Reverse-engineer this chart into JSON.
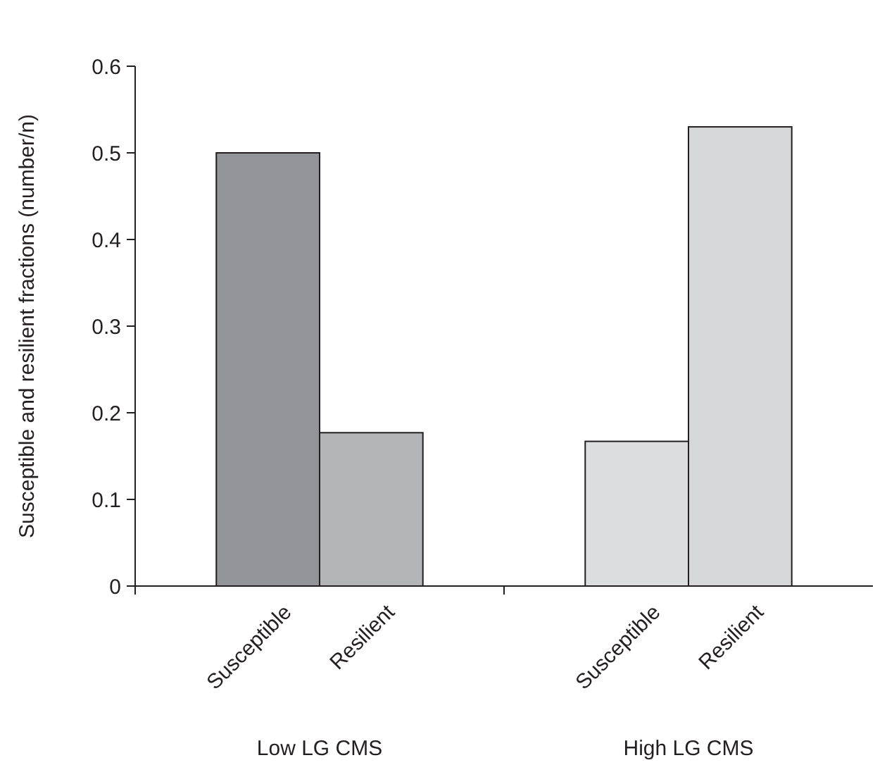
{
  "chart_data": {
    "type": "bar",
    "ylabel": "Susceptible and resilient fractions (number/n)",
    "categories": [
      "Susceptible",
      "Resilient",
      "Susceptible",
      "Resilient"
    ],
    "values": [
      0.5,
      0.177,
      0.167,
      0.53
    ],
    "colors": [
      "#939598",
      "#b4b5b7",
      "#dcddde",
      "#d6d7d8"
    ],
    "ylim": [
      0,
      0.6
    ],
    "yticks": [
      0,
      0.1,
      0.2,
      0.3,
      0.4,
      0.5,
      0.6
    ],
    "annotations": [
      "Low LG CMS",
      "High LG CMS"
    ]
  }
}
